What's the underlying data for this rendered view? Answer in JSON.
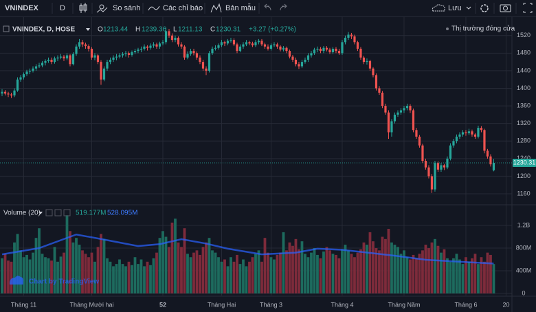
{
  "toolbar": {
    "symbol": "VNINDEX",
    "interval": "D",
    "compare": "So sánh",
    "indicators": "Các chỉ báo",
    "templates": "Bản mẫu",
    "save": "Lưu"
  },
  "chart_data": {
    "type": "candlestick",
    "legend": {
      "title": "VNINDEX, D, HOSE",
      "open_label": "O",
      "high_label": "H",
      "low_label": "L",
      "close_label": "C",
      "change": "+3.27 (+0.27%)",
      "status": "Thị trường đóng cửa"
    },
    "candles": [
      [
        1388,
        1398,
        1382,
        1392
      ],
      [
        1392,
        1396,
        1384,
        1388
      ],
      [
        1388,
        1392,
        1380,
        1386
      ],
      [
        1386,
        1390,
        1378,
        1384
      ],
      [
        1384,
        1400,
        1380,
        1395
      ],
      [
        1395,
        1425,
        1392,
        1420
      ],
      [
        1420,
        1430,
        1415,
        1425
      ],
      [
        1425,
        1436,
        1420,
        1432
      ],
      [
        1432,
        1442,
        1428,
        1438
      ],
      [
        1438,
        1445,
        1432,
        1440
      ],
      [
        1440,
        1450,
        1436,
        1445
      ],
      [
        1445,
        1455,
        1440,
        1450
      ],
      [
        1450,
        1458,
        1446,
        1452
      ],
      [
        1452,
        1462,
        1448,
        1458
      ],
      [
        1458,
        1466,
        1452,
        1462
      ],
      [
        1462,
        1470,
        1458,
        1465
      ],
      [
        1465,
        1470,
        1455,
        1460
      ],
      [
        1460,
        1472,
        1456,
        1468
      ],
      [
        1468,
        1475,
        1462,
        1470
      ],
      [
        1470,
        1478,
        1466,
        1472
      ],
      [
        1472,
        1476,
        1462,
        1468
      ],
      [
        1468,
        1480,
        1464,
        1475
      ],
      [
        1475,
        1478,
        1450,
        1455
      ],
      [
        1455,
        1482,
        1452,
        1478
      ],
      [
        1478,
        1500,
        1474,
        1495
      ],
      [
        1495,
        1512,
        1490,
        1505
      ],
      [
        1505,
        1510,
        1494,
        1500
      ],
      [
        1500,
        1504,
        1490,
        1496
      ],
      [
        1496,
        1500,
        1484,
        1490
      ],
      [
        1490,
        1494,
        1465,
        1470
      ],
      [
        1470,
        1480,
        1464,
        1475
      ],
      [
        1475,
        1478,
        1455,
        1460
      ],
      [
        1460,
        1464,
        1408,
        1420
      ],
      [
        1420,
        1450,
        1416,
        1445
      ],
      [
        1445,
        1465,
        1440,
        1460
      ],
      [
        1460,
        1470,
        1455,
        1465
      ],
      [
        1465,
        1475,
        1460,
        1470
      ],
      [
        1470,
        1478,
        1464,
        1472
      ],
      [
        1472,
        1480,
        1468,
        1475
      ],
      [
        1475,
        1482,
        1470,
        1478
      ],
      [
        1478,
        1485,
        1472,
        1480
      ],
      [
        1480,
        1484,
        1470,
        1476
      ],
      [
        1476,
        1486,
        1472,
        1482
      ],
      [
        1482,
        1490,
        1478,
        1485
      ],
      [
        1485,
        1492,
        1480,
        1488
      ],
      [
        1488,
        1495,
        1482,
        1490
      ],
      [
        1490,
        1500,
        1486,
        1495
      ],
      [
        1495,
        1498,
        1486,
        1492
      ],
      [
        1492,
        1502,
        1488,
        1497
      ],
      [
        1497,
        1505,
        1492,
        1500
      ],
      [
        1500,
        1504,
        1490,
        1495
      ],
      [
        1495,
        1506,
        1490,
        1502
      ],
      [
        1502,
        1510,
        1498,
        1505
      ],
      [
        1505,
        1538,
        1500,
        1530
      ],
      [
        1530,
        1535,
        1515,
        1520
      ],
      [
        1520,
        1525,
        1505,
        1510
      ],
      [
        1510,
        1520,
        1505,
        1515
      ],
      [
        1515,
        1518,
        1495,
        1500
      ],
      [
        1500,
        1505,
        1490,
        1495
      ],
      [
        1495,
        1498,
        1465,
        1470
      ],
      [
        1470,
        1484,
        1466,
        1478
      ],
      [
        1478,
        1490,
        1474,
        1485
      ],
      [
        1485,
        1490,
        1475,
        1480
      ],
      [
        1480,
        1484,
        1465,
        1470
      ],
      [
        1470,
        1475,
        1455,
        1460
      ],
      [
        1460,
        1465,
        1440,
        1445
      ],
      [
        1445,
        1450,
        1430,
        1440
      ],
      [
        1440,
        1485,
        1436,
        1480
      ],
      [
        1480,
        1495,
        1476,
        1490
      ],
      [
        1490,
        1498,
        1486,
        1492
      ],
      [
        1492,
        1502,
        1488,
        1498
      ],
      [
        1498,
        1510,
        1494,
        1505
      ],
      [
        1505,
        1508,
        1496,
        1502
      ],
      [
        1502,
        1512,
        1498,
        1508
      ],
      [
        1508,
        1515,
        1504,
        1510
      ],
      [
        1510,
        1514,
        1496,
        1500
      ],
      [
        1500,
        1504,
        1480,
        1485
      ],
      [
        1485,
        1500,
        1482,
        1495
      ],
      [
        1495,
        1505,
        1490,
        1500
      ],
      [
        1500,
        1510,
        1496,
        1505
      ],
      [
        1505,
        1508,
        1498,
        1502
      ],
      [
        1502,
        1506,
        1494,
        1498
      ],
      [
        1498,
        1510,
        1494,
        1505
      ],
      [
        1505,
        1512,
        1500,
        1508
      ],
      [
        1508,
        1512,
        1496,
        1500
      ],
      [
        1500,
        1504,
        1490,
        1495
      ],
      [
        1495,
        1500,
        1486,
        1490
      ],
      [
        1490,
        1502,
        1486,
        1498
      ],
      [
        1498,
        1505,
        1494,
        1500
      ],
      [
        1500,
        1504,
        1490,
        1495
      ],
      [
        1495,
        1498,
        1484,
        1488
      ],
      [
        1488,
        1496,
        1484,
        1492
      ],
      [
        1492,
        1495,
        1480,
        1485
      ],
      [
        1485,
        1488,
        1468,
        1472
      ],
      [
        1472,
        1476,
        1460,
        1465
      ],
      [
        1465,
        1470,
        1450,
        1455
      ],
      [
        1455,
        1460,
        1444,
        1450
      ],
      [
        1450,
        1465,
        1446,
        1460
      ],
      [
        1460,
        1470,
        1456,
        1465
      ],
      [
        1465,
        1480,
        1460,
        1475
      ],
      [
        1475,
        1485,
        1470,
        1480
      ],
      [
        1480,
        1492,
        1476,
        1488
      ],
      [
        1488,
        1495,
        1482,
        1490
      ],
      [
        1490,
        1494,
        1480,
        1485
      ],
      [
        1485,
        1496,
        1480,
        1492
      ],
      [
        1492,
        1496,
        1484,
        1488
      ],
      [
        1488,
        1492,
        1478,
        1482
      ],
      [
        1482,
        1494,
        1478,
        1490
      ],
      [
        1490,
        1494,
        1480,
        1485
      ],
      [
        1485,
        1490,
        1476,
        1480
      ],
      [
        1480,
        1510,
        1476,
        1505
      ],
      [
        1505,
        1520,
        1500,
        1515
      ],
      [
        1515,
        1528,
        1510,
        1522
      ],
      [
        1522,
        1526,
        1512,
        1518
      ],
      [
        1518,
        1522,
        1500,
        1505
      ],
      [
        1505,
        1508,
        1485,
        1490
      ],
      [
        1490,
        1494,
        1465,
        1470
      ],
      [
        1470,
        1474,
        1455,
        1460
      ],
      [
        1460,
        1468,
        1454,
        1462
      ],
      [
        1462,
        1465,
        1440,
        1445
      ],
      [
        1445,
        1448,
        1425,
        1430
      ],
      [
        1430,
        1434,
        1395,
        1400
      ],
      [
        1400,
        1405,
        1385,
        1390
      ],
      [
        1390,
        1394,
        1355,
        1360
      ],
      [
        1360,
        1365,
        1340,
        1345
      ],
      [
        1345,
        1350,
        1285,
        1300
      ],
      [
        1300,
        1330,
        1290,
        1325
      ],
      [
        1325,
        1345,
        1320,
        1340
      ],
      [
        1340,
        1350,
        1335,
        1345
      ],
      [
        1345,
        1355,
        1340,
        1350
      ],
      [
        1350,
        1360,
        1344,
        1355
      ],
      [
        1355,
        1365,
        1350,
        1360
      ],
      [
        1360,
        1364,
        1344,
        1350
      ],
      [
        1350,
        1354,
        1300,
        1305
      ],
      [
        1305,
        1310,
        1285,
        1290
      ],
      [
        1290,
        1294,
        1265,
        1270
      ],
      [
        1270,
        1274,
        1230,
        1235
      ],
      [
        1235,
        1240,
        1215,
        1220
      ],
      [
        1220,
        1225,
        1195,
        1200
      ],
      [
        1200,
        1205,
        1162,
        1170
      ],
      [
        1170,
        1235,
        1165,
        1230
      ],
      [
        1230,
        1234,
        1210,
        1215
      ],
      [
        1215,
        1230,
        1210,
        1225
      ],
      [
        1225,
        1228,
        1214,
        1220
      ],
      [
        1220,
        1245,
        1216,
        1240
      ],
      [
        1240,
        1275,
        1236,
        1270
      ],
      [
        1270,
        1285,
        1265,
        1280
      ],
      [
        1280,
        1295,
        1275,
        1290
      ],
      [
        1290,
        1300,
        1285,
        1295
      ],
      [
        1295,
        1305,
        1290,
        1300
      ],
      [
        1300,
        1305,
        1292,
        1298
      ],
      [
        1298,
        1308,
        1294,
        1302
      ],
      [
        1302,
        1306,
        1290,
        1295
      ],
      [
        1295,
        1298,
        1285,
        1290
      ],
      [
        1290,
        1315,
        1286,
        1310
      ],
      [
        1310,
        1314,
        1300,
        1305
      ],
      [
        1305,
        1308,
        1252,
        1258
      ],
      [
        1258,
        1262,
        1240,
        1245
      ],
      [
        1245,
        1250,
        1222,
        1227.04
      ],
      [
        1213.44,
        1239.36,
        1211.13,
        1230.31
      ]
    ],
    "colors": {
      "up": "#26a69a",
      "down": "#ef5350",
      "volume_up": "#1d6b5e",
      "volume_down": "#7e2b3b",
      "volume_ma": "#2962ff",
      "grid": "#262a36"
    },
    "ylim": [
      1135,
      1554
    ],
    "yticks": [
      1160,
      1200,
      1240,
      1280,
      1320,
      1360,
      1400,
      1440,
      1480,
      1520
    ],
    "xlim": [
      -0.67,
      164.9
    ],
    "xticks": [
      {
        "value": 7,
        "label": "Tháng 11"
      },
      {
        "value": 29,
        "label": "Tháng Mười hai"
      },
      52,
      {
        "value": 71,
        "label": "Tháng Hai"
      },
      {
        "value": 87,
        "label": "Tháng 3"
      },
      {
        "value": 110,
        "label": "Tháng 4"
      },
      {
        "value": 130,
        "label": "Tháng Năm"
      },
      {
        "value": 150,
        "label": "Tháng 6"
      },
      {
        "value": 163,
        "label": "20"
      }
    ],
    "grid": true,
    "volume": {
      "title": "Volume (20)",
      "legend_value": "519.177M",
      "values": [
        620,
        700,
        580,
        560,
        900,
        1050,
        760,
        640,
        680,
        600,
        720,
        980,
        1150,
        700,
        640,
        620,
        580,
        820,
        560,
        650,
        720,
        1380,
        1100,
        900,
        980,
        860,
        760,
        700,
        640,
        720,
        560,
        820,
        1050,
        960,
        620,
        560,
        480,
        520,
        600,
        520,
        480,
        560,
        500,
        640,
        520,
        600,
        480,
        560,
        500,
        620,
        720,
        980,
        1100,
        1000,
        820,
        1250,
        1320,
        900,
        820,
        1150,
        700,
        640,
        720,
        760,
        680,
        820,
        900,
        980,
        760,
        720,
        640,
        560,
        600,
        480,
        640,
        560,
        680,
        520,
        600,
        480,
        560,
        640,
        700,
        760,
        560,
        980,
        720,
        640,
        600,
        680,
        720,
        1080,
        760,
        900,
        840,
        960,
        780,
        920,
        700,
        640,
        720,
        800,
        680,
        620,
        740,
        820,
        760,
        700,
        680,
        620,
        780,
        860,
        760,
        700,
        640,
        720,
        780,
        900,
        860,
        1080,
        920,
        800,
        760,
        1000,
        960,
        1140,
        900,
        860,
        820,
        700,
        760,
        640,
        600,
        680,
        620,
        700,
        760,
        860,
        800,
        900,
        960,
        840,
        720,
        780,
        620,
        560,
        620,
        700,
        600,
        520,
        640,
        560,
        620,
        700,
        520,
        640,
        560,
        720,
        680,
        519.177
      ],
      "ylim": [
        0,
        1540
      ],
      "yticks": [
        0,
        {
          "value": 400,
          "label": "400M"
        },
        {
          "value": 800,
          "label": "800M"
        },
        {
          "value": 1200,
          "label": "1.2B"
        }
      ]
    },
    "volume_ma": {
      "legend_value": "528.095M",
      "x": [
        0,
        12,
        24,
        33,
        44,
        51,
        58,
        66,
        73,
        84,
        95,
        102,
        110,
        119,
        128,
        137,
        148,
        159
      ],
      "values": [
        690,
        800,
        1040,
        950,
        836,
        870,
        957,
        880,
        790,
        690,
        720,
        790,
        770,
        715,
        660,
        594,
        560,
        528.095
      ]
    },
    "watermark": "Chart by TradingView"
  }
}
